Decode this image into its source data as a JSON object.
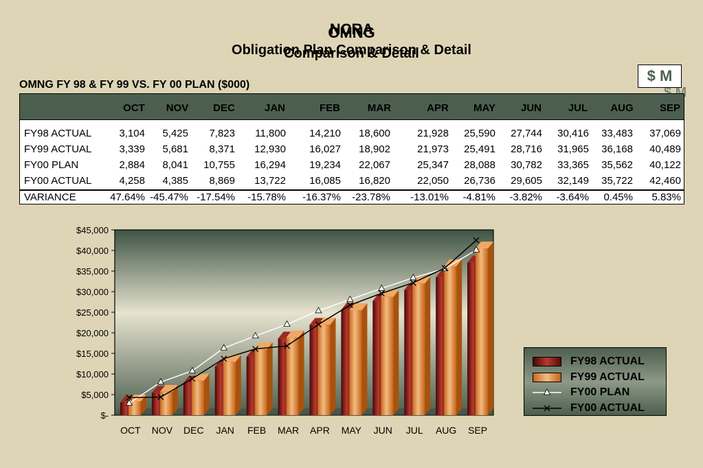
{
  "header": {
    "title_back": "NCRA",
    "title_front": "OMNG",
    "subtitle_back": "Obligation Plan Comparison & Detail",
    "subtitle_front": "Comparison & Detail",
    "badge": "$ M",
    "badge_shadow": "$ M"
  },
  "table": {
    "title": "OMNG FY 98 & FY 99 VS. FY 00 PLAN ($000)",
    "columns": [
      "OCT",
      "NOV",
      "DEC",
      "JAN",
      "FEB",
      "MAR",
      "APR",
      "MAY",
      "JUN",
      "JUL",
      "AUG",
      "SEP"
    ],
    "rows": [
      {
        "label": "FY98 ACTUAL",
        "values": [
          "3,104",
          "5,425",
          "7,823",
          "11,800",
          "14,210",
          "18,600",
          "21,928",
          "25,590",
          "27,744",
          "30,416",
          "33,483",
          "37,069"
        ]
      },
      {
        "label": "FY99 ACTUAL",
        "values": [
          "3,339",
          "5,681",
          "8,371",
          "12,930",
          "16,027",
          "18,902",
          "21,973",
          "25,491",
          "28,716",
          "31,965",
          "36,168",
          "40,489"
        ]
      },
      {
        "label": "FY00 PLAN",
        "values": [
          "2,884",
          "8,041",
          "10,755",
          "16,294",
          "19,234",
          "22,067",
          "25,347",
          "28,088",
          "30,782",
          "33,365",
          "35,562",
          "40,122"
        ]
      },
      {
        "label": "FY00 ACTUAL",
        "values": [
          "4,258",
          "4,385",
          "8,869",
          "13,722",
          "16,085",
          "16,820",
          "22,050",
          "26,736",
          "29,605",
          "32,149",
          "35,722",
          "42,460"
        ]
      },
      {
        "label": "VARIANCE",
        "values": [
          "47.64%",
          "-45.47%",
          "-17.54%",
          "-15.78%",
          "-16.37%",
          "-23.78%",
          "-13.01%",
          "-4.81%",
          "-3.82%",
          "-3.64%",
          "0.45%",
          "5.83%"
        ]
      }
    ]
  },
  "chart_data": {
    "type": "bar",
    "categories": [
      "OCT",
      "NOV",
      "DEC",
      "JAN",
      "FEB",
      "MAR",
      "APR",
      "MAY",
      "JUN",
      "JUL",
      "AUG",
      "SEP"
    ],
    "series": [
      {
        "name": "FY98 ACTUAL",
        "kind": "bar",
        "color": "#7a1010",
        "values": [
          3104,
          5425,
          7823,
          11800,
          14210,
          18600,
          21928,
          25590,
          27744,
          30416,
          33483,
          37069
        ]
      },
      {
        "name": "FY99 ACTUAL",
        "kind": "bar",
        "color": "#e08a3a",
        "values": [
          3339,
          5681,
          8371,
          12930,
          16027,
          18902,
          21973,
          25491,
          28716,
          31965,
          36168,
          40489
        ]
      },
      {
        "name": "FY00 PLAN",
        "kind": "line",
        "marker": "triangle",
        "color": "#ffffff",
        "values": [
          2884,
          8041,
          10755,
          16294,
          19234,
          22067,
          25347,
          28088,
          30782,
          33365,
          35562,
          40122
        ]
      },
      {
        "name": "FY00 ACTUAL",
        "kind": "line",
        "marker": "x",
        "color": "#000000",
        "values": [
          4258,
          4385,
          8869,
          13722,
          16085,
          16820,
          22050,
          26736,
          29605,
          32149,
          35722,
          42460
        ]
      }
    ],
    "ylim": [
      0,
      45000
    ],
    "yticks": [
      0,
      5000,
      10000,
      15000,
      20000,
      25000,
      30000,
      35000,
      40000,
      45000
    ],
    "ytick_labels": [
      "$-",
      "$5,000",
      "$10,000",
      "$15,000",
      "$20,000",
      "$25,000",
      "$30,000",
      "$35,000",
      "$40,000",
      "$45,000"
    ],
    "legend_position": "right"
  }
}
